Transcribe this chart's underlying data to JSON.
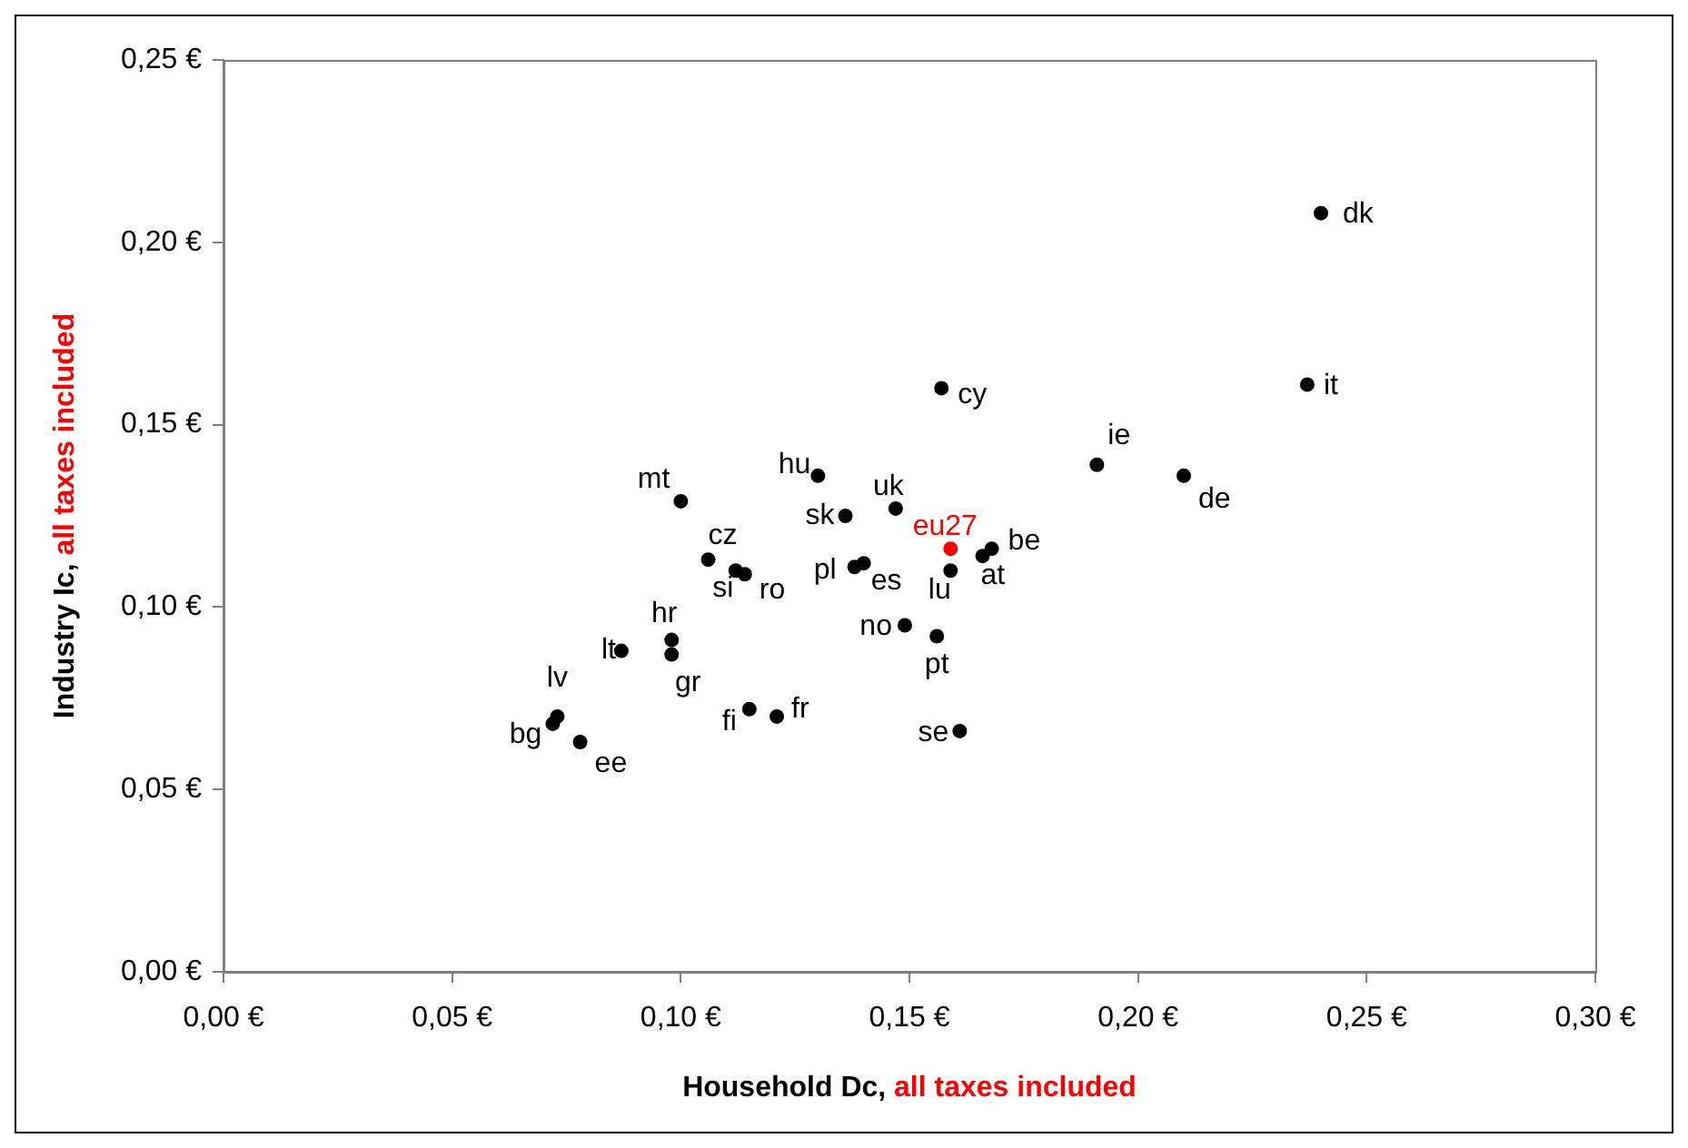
{
  "chart_data": {
    "type": "scatter",
    "xlabel": "Household Dc, all taxes included",
    "ylabel": "Industry Ic, all taxes included",
    "xlim": [
      0,
      0.3
    ],
    "ylim": [
      0,
      0.25
    ],
    "xticks": [
      {
        "value": 0,
        "label": "0,00 €"
      },
      {
        "value": 0.05,
        "label": "0,05 €"
      },
      {
        "value": 0.1,
        "label": "0,10 €"
      },
      {
        "value": 0.15,
        "label": "0,15 €"
      },
      {
        "value": 0.2,
        "label": "0,20 €"
      },
      {
        "value": 0.25,
        "label": "0,25 €"
      },
      {
        "value": 0.3,
        "label": "0,30 €"
      }
    ],
    "yticks": [
      {
        "value": 0,
        "label": "0,00 €"
      },
      {
        "value": 0.05,
        "label": "0,05 €"
      },
      {
        "value": 0.1,
        "label": "0,10 €"
      },
      {
        "value": 0.15,
        "label": "0,15 €"
      },
      {
        "value": 0.2,
        "label": "0,20 €"
      },
      {
        "value": 0.25,
        "label": "0,25 €"
      }
    ],
    "grid": false,
    "legend": false,
    "marker": "circle",
    "series": [
      {
        "name": "dk",
        "color": "#000000",
        "x": [
          0.24
        ],
        "values": [
          0.208
        ]
      },
      {
        "name": "it",
        "color": "#000000",
        "x": [
          0.237
        ],
        "values": [
          0.161
        ]
      },
      {
        "name": "cy",
        "color": "#000000",
        "x": [
          0.157
        ],
        "values": [
          0.16
        ]
      },
      {
        "name": "ie",
        "color": "#000000",
        "x": [
          0.191
        ],
        "values": [
          0.139
        ]
      },
      {
        "name": "de",
        "color": "#000000",
        "x": [
          0.21
        ],
        "values": [
          0.136
        ]
      },
      {
        "name": "hu",
        "color": "#000000",
        "x": [
          0.13
        ],
        "values": [
          0.136
        ]
      },
      {
        "name": "mt",
        "color": "#000000",
        "x": [
          0.1
        ],
        "values": [
          0.129
        ]
      },
      {
        "name": "uk",
        "color": "#000000",
        "x": [
          0.147
        ],
        "values": [
          0.127
        ]
      },
      {
        "name": "sk",
        "color": "#000000",
        "x": [
          0.136
        ],
        "values": [
          0.125
        ]
      },
      {
        "name": "eu27",
        "color": "#ff0000",
        "x": [
          0.159
        ],
        "values": [
          0.116
        ]
      },
      {
        "name": "be",
        "color": "#000000",
        "x": [
          0.168
        ],
        "values": [
          0.116
        ]
      },
      {
        "name": "at",
        "color": "#000000",
        "x": [
          0.166
        ],
        "values": [
          0.114
        ]
      },
      {
        "name": "lu",
        "color": "#000000",
        "x": [
          0.159
        ],
        "values": [
          0.11
        ]
      },
      {
        "name": "cz",
        "color": "#000000",
        "x": [
          0.106
        ],
        "values": [
          0.113
        ]
      },
      {
        "name": "pl",
        "color": "#000000",
        "x": [
          0.138
        ],
        "values": [
          0.111
        ]
      },
      {
        "name": "es",
        "color": "#000000",
        "x": [
          0.14
        ],
        "values": [
          0.112
        ]
      },
      {
        "name": "si",
        "color": "#000000",
        "x": [
          0.112
        ],
        "values": [
          0.11
        ]
      },
      {
        "name": "ro",
        "color": "#000000",
        "x": [
          0.114
        ],
        "values": [
          0.109
        ]
      },
      {
        "name": "no",
        "color": "#000000",
        "x": [
          0.149
        ],
        "values": [
          0.095
        ]
      },
      {
        "name": "pt",
        "color": "#000000",
        "x": [
          0.156
        ],
        "values": [
          0.092
        ]
      },
      {
        "name": "hr",
        "color": "#000000",
        "x": [
          0.098
        ],
        "values": [
          0.091
        ]
      },
      {
        "name": "gr",
        "color": "#000000",
        "x": [
          0.098
        ],
        "values": [
          0.087
        ]
      },
      {
        "name": "lt",
        "color": "#000000",
        "x": [
          0.087
        ],
        "values": [
          0.088
        ]
      },
      {
        "name": "fi",
        "color": "#000000",
        "x": [
          0.115
        ],
        "values": [
          0.072
        ]
      },
      {
        "name": "fr",
        "color": "#000000",
        "x": [
          0.121
        ],
        "values": [
          0.07
        ]
      },
      {
        "name": "se",
        "color": "#000000",
        "x": [
          0.161
        ],
        "values": [
          0.066
        ]
      },
      {
        "name": "lv",
        "color": "#000000",
        "x": [
          0.073
        ],
        "values": [
          0.07
        ]
      },
      {
        "name": "bg",
        "color": "#000000",
        "x": [
          0.072
        ],
        "values": [
          0.068
        ]
      },
      {
        "name": "ee",
        "color": "#000000",
        "x": [
          0.078
        ],
        "values": [
          0.063
        ]
      }
    ]
  }
}
